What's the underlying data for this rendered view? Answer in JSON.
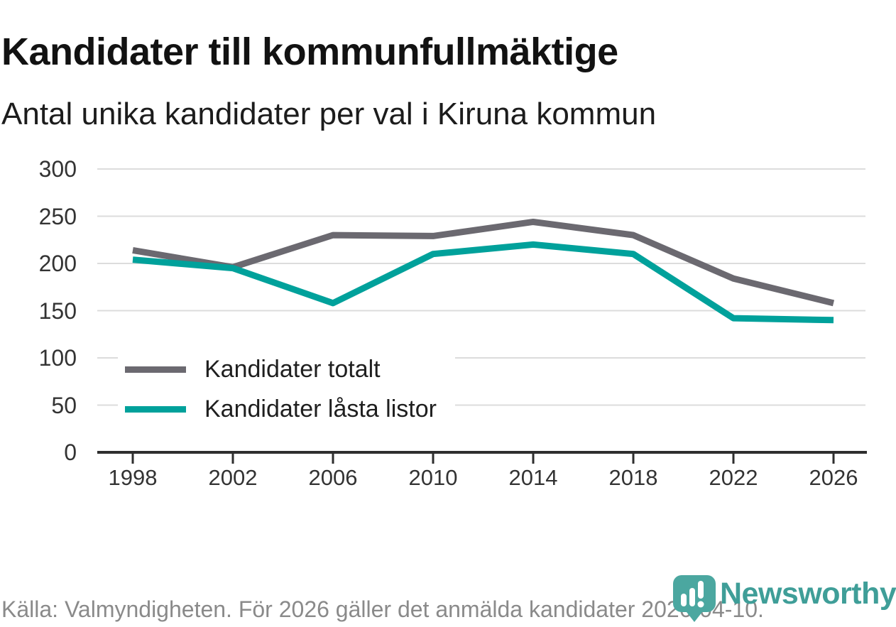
{
  "title": "Kandidater till kommunfullmäktige",
  "subtitle": "Antal unika kandidater per val i Kiruna kommun",
  "footer": {
    "source_text": "Källa: Valmyndigheten. För 2026 gäller det anmälda kandidater 2026-04-10."
  },
  "branding": {
    "name": "Newsworthy",
    "icon": "newsworthy-pin-barchart-icon",
    "icon_color": "#4ba7a0",
    "wordmark_color": "#3f9e98"
  },
  "colors": {
    "grid": "#dcdcdc",
    "axis": "#2e2e2e",
    "tick_label": "#333333"
  },
  "chart_data": {
    "type": "line",
    "x": [
      1998,
      2002,
      2006,
      2010,
      2014,
      2018,
      2022,
      2026
    ],
    "series": [
      {
        "name": "Kandidater totalt",
        "color": "#6b6970",
        "values": [
          214,
          196,
          230,
          229,
          244,
          230,
          184,
          158
        ]
      },
      {
        "name": "Kandidater låsta listor",
        "color": "#00a19b",
        "values": [
          204,
          195,
          158,
          210,
          220,
          210,
          142,
          140
        ]
      }
    ],
    "ylim": [
      0,
      300
    ],
    "yticks": [
      0,
      50,
      100,
      150,
      200,
      250,
      300
    ],
    "grid": true,
    "legend_position": "inside-bottom-left"
  }
}
